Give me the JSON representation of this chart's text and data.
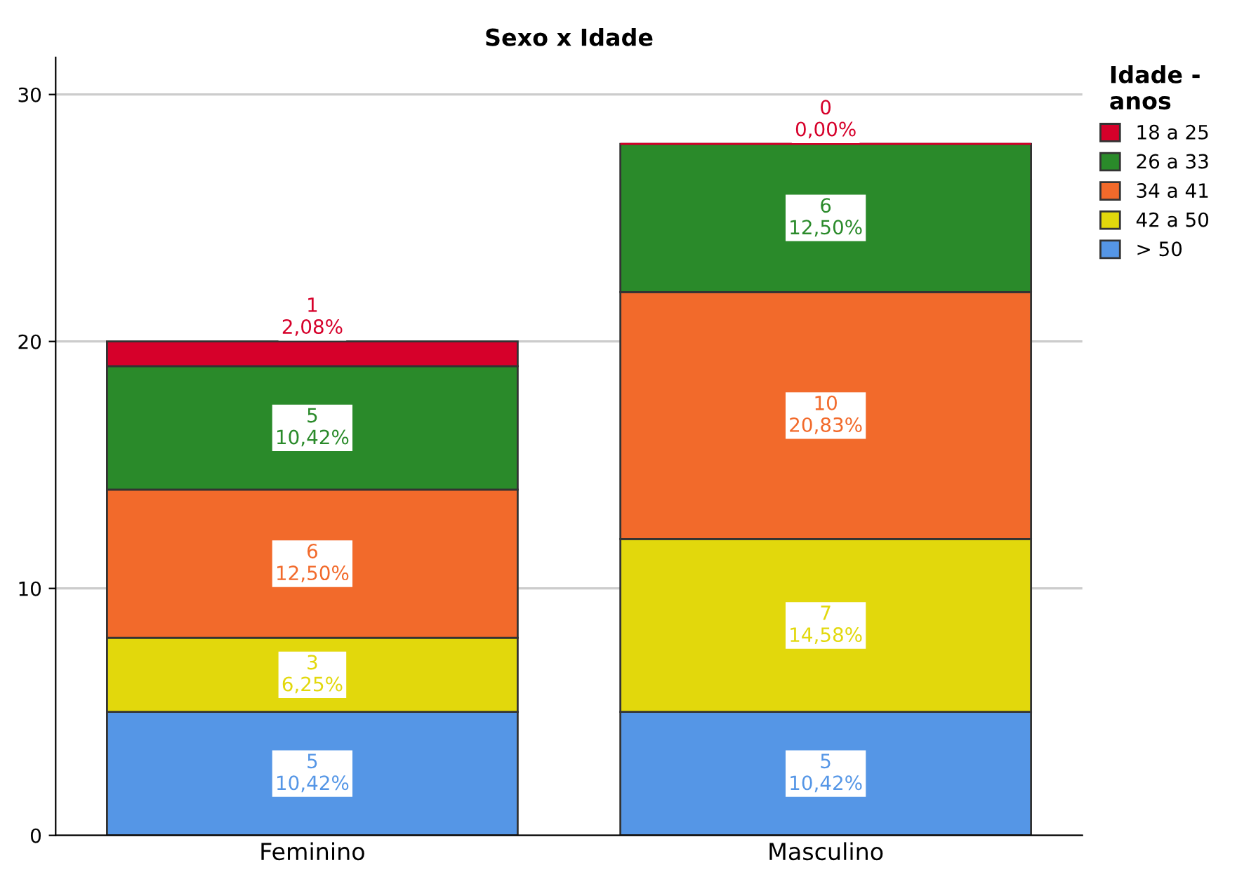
{
  "chart_data": {
    "type": "bar",
    "title": "Sexo x Idade",
    "legend_title": "Idade -\nanos",
    "categories": [
      "Feminino",
      "Masculino"
    ],
    "stacked": true,
    "ylim": [
      0,
      31.5
    ],
    "yticks": [
      0,
      10,
      20,
      30
    ],
    "grid": "y",
    "legend": "right",
    "series": [
      {
        "name": "> 50",
        "color": "#5596e6",
        "values": [
          5,
          5
        ],
        "value_labels": [
          "5\n10,42%",
          "5\n10,42%"
        ]
      },
      {
        "name": "42 a 50",
        "color": "#e2d80c",
        "values": [
          3,
          7
        ],
        "value_labels": [
          "3\n6,25%",
          "7\n14,58%"
        ]
      },
      {
        "name": "34 a 41",
        "color": "#f26a2b",
        "values": [
          6,
          10
        ],
        "value_labels": [
          "6\n12,50%",
          "10\n20,83%"
        ]
      },
      {
        "name": "26 a 33",
        "color": "#2a8a2a",
        "values": [
          5,
          6
        ],
        "value_labels": [
          "5\n10,42%",
          "6\n12,50%"
        ]
      },
      {
        "name": "18 a 25",
        "color": "#d6002a",
        "values": [
          1,
          0
        ],
        "value_labels": [
          "1\n2,08%",
          "0\n0,00%"
        ]
      }
    ]
  }
}
